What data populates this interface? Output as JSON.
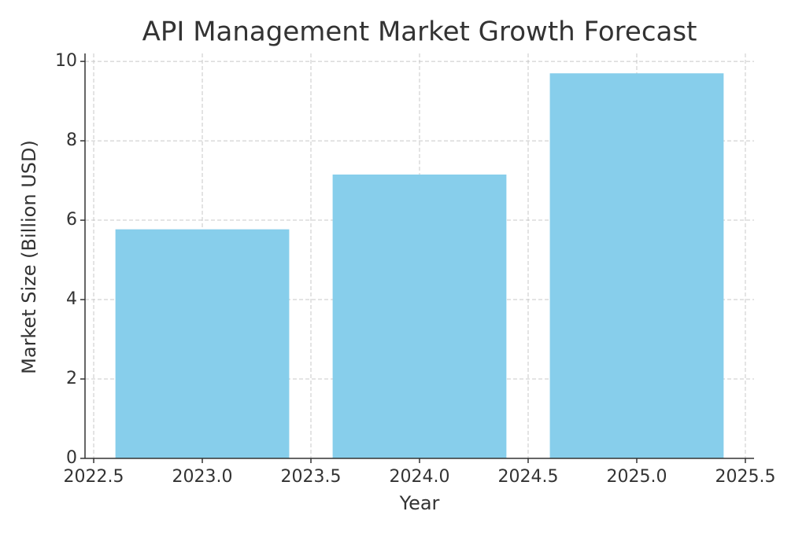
{
  "chart_data": {
    "type": "bar",
    "title": "API Management Market Growth Forecast",
    "x_label": "Year",
    "y_label": "Market Size (Billion USD)",
    "x": [
      2023,
      2024,
      2025
    ],
    "values": [
      5.77,
      7.15,
      9.7
    ],
    "color": "#87ceeb",
    "xlim": [
      2022.46,
      2025.54
    ],
    "ylim": [
      0,
      10.2
    ],
    "xticks": [
      2022.5,
      {
        "value": 2023,
        "label": "2023.0"
      },
      2023.5,
      {
        "value": 2024,
        "label": "2024.0"
      },
      2024.5,
      {
        "value": 2025,
        "label": "2025.0"
      },
      2025.5
    ],
    "yticks": [
      0,
      2,
      4,
      6,
      8,
      10
    ],
    "grid": true
  }
}
